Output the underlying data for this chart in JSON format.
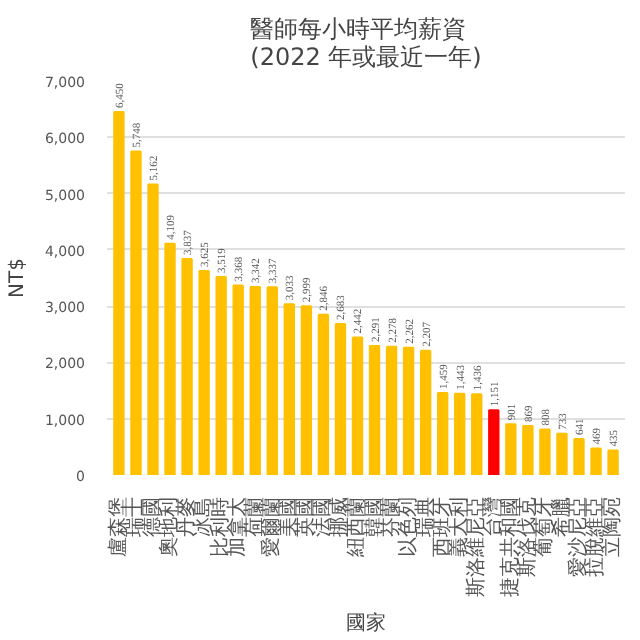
{
  "chart_data": {
    "type": "bar",
    "title": "醫師每小時平均薪資\n(2022 年或最近一年)",
    "xlabel": "國家",
    "ylabel": "NT$",
    "categories": [
      "盧森堡",
      "瑞士",
      "德國",
      "奧地利",
      "丹麥",
      "冰島",
      "比利時",
      "加拿大",
      "荷蘭",
      "愛爾蘭",
      "美國",
      "英國",
      "法國",
      "挪威",
      "紐西蘭",
      "韓國",
      "芬蘭",
      "以色列",
      "瑞典",
      "西班牙",
      "義大利",
      "斯洛維尼亞",
      "台灣",
      "捷克共和國",
      "斯洛伐克",
      "葡萄牙",
      "希臘",
      "愛沙尼亞",
      "拉脫維亞",
      "立陶宛"
    ],
    "values": [
      6450,
      5748,
      5162,
      4109,
      3837,
      3625,
      3519,
      3368,
      3342,
      3337,
      3033,
      2999,
      2846,
      2683,
      2442,
      2291,
      2278,
      2262,
      2207,
      1459,
      1443,
      1436,
      1151,
      901,
      869,
      808,
      733,
      641,
      469,
      435
    ],
    "colors": [
      "#ffc000",
      "#ffc000",
      "#ffc000",
      "#ffc000",
      "#ffc000",
      "#ffc000",
      "#ffc000",
      "#ffc000",
      "#ffc000",
      "#ffc000",
      "#ffc000",
      "#ffc000",
      "#ffc000",
      "#ffc000",
      "#ffc000",
      "#ffc000",
      "#ffc000",
      "#ffc000",
      "#ffc000",
      "#ffc000",
      "#ffc000",
      "#ffc000",
      "#ff0000",
      "#ffc000",
      "#ffc000",
      "#ffc000",
      "#ffc000",
      "#ffc000",
      "#ffc000",
      "#ffc000"
    ],
    "ylim": [
      0,
      7000
    ],
    "yticks": [
      0,
      {
        "value": 1000,
        "label": "1,000"
      },
      {
        "value": 2000,
        "label": "2,000"
      },
      {
        "value": 3000,
        "label": "3,000"
      },
      {
        "value": 4000,
        "label": "4,000"
      },
      {
        "value": 5000,
        "label": "5,000"
      },
      {
        "value": 6000,
        "label": "6,000"
      },
      {
        "value": 7000,
        "label": "7,000"
      }
    ],
    "value_labels": [
      "6,450",
      "5,748",
      "5,162",
      "4,109",
      "3,837",
      "3,625",
      "3,519",
      "3,368",
      "3,342",
      "3,337",
      "3,033",
      "2,999",
      "2,846",
      "2,683",
      "2,442",
      "2,291",
      "2,278",
      "2,262",
      "2,207",
      "1,459",
      "1,443",
      "1,436",
      "1,151",
      "901",
      "869",
      "808",
      "733",
      "641",
      "469",
      "435"
    ],
    "grid": "y"
  }
}
